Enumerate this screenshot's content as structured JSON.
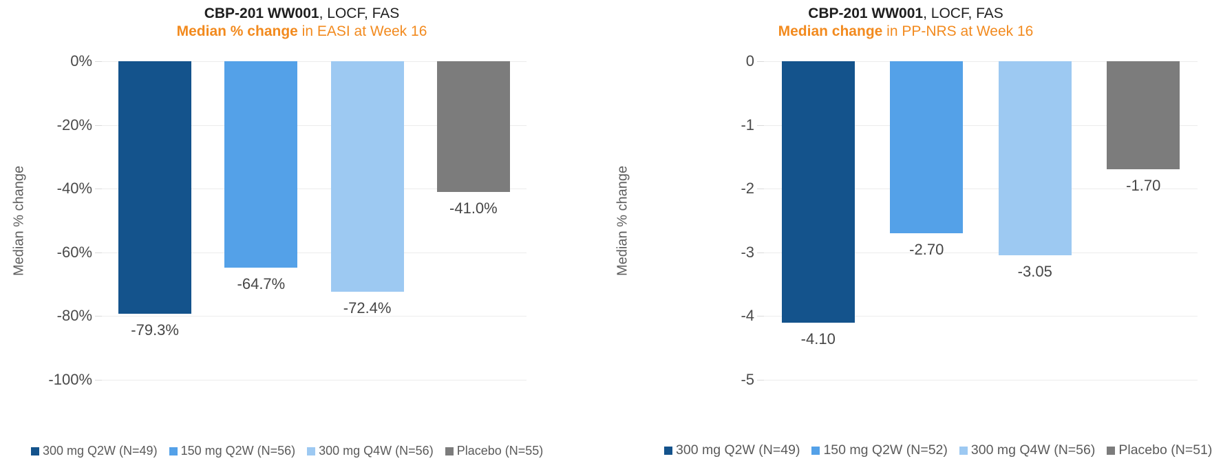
{
  "panels": [
    {
      "title_bold": "CBP-201 WW001",
      "title_rest": ", LOCF, FAS",
      "subtitle_bold": "Median % change",
      "subtitle_rest": " in EASI at Week 16",
      "y_axis_title": "Median % change"
    },
    {
      "title_bold": "CBP-201 WW001",
      "title_rest": ", LOCF, FAS",
      "subtitle_bold": "Median change",
      "subtitle_rest": " in PP-NRS at Week 16",
      "y_axis_title": "Median % change"
    }
  ],
  "colors": {
    "accent_orange": "#F28A1E",
    "title_text": "#1E1E1E",
    "axis_text": "#4A4A4A",
    "legend_text": "#5A5A5A",
    "gridline": "#ECECEC",
    "series_dark_blue": "#14538C",
    "series_mid_blue": "#54A1E8",
    "series_light_blue": "#9DC9F2",
    "series_gray": "#7C7C7C"
  },
  "chart_data": [
    {
      "type": "bar",
      "title": "CBP-201 WW001, LOCF, FAS",
      "subtitle": "Median % change in EASI at Week 16",
      "ylabel": "Median % change",
      "ylim": [
        -100,
        0
      ],
      "ytick_labels": [
        "0%",
        "-20%",
        "-40%",
        "-60%",
        "-80%",
        "-100%"
      ],
      "categories": [
        "300 mg Q2W (N=49)",
        "150 mg Q2W (N=56)",
        "300 mg Q4W (N=56)",
        "Placebo (N=55)"
      ],
      "values": [
        -79.3,
        -64.7,
        -72.4,
        -41.0
      ],
      "bar_labels": [
        "-79.3%",
        "-64.7%",
        "-72.4%",
        "-41.0%"
      ],
      "bar_colors": [
        "#14538C",
        "#54A1E8",
        "#9DC9F2",
        "#7C7C7C"
      ],
      "grid": true,
      "legend_position": "bottom"
    },
    {
      "type": "bar",
      "title": "CBP-201 WW001, LOCF, FAS",
      "subtitle": "Median change in PP-NRS at Week 16",
      "ylabel": "Median % change",
      "ylim": [
        -5,
        0
      ],
      "ytick_labels": [
        "0",
        "-1",
        "-2",
        "-3",
        "-4",
        "-5"
      ],
      "categories": [
        "300 mg Q2W (N=49)",
        "150 mg Q2W (N=52)",
        "300 mg Q4W (N=56)",
        "Placebo (N=51)"
      ],
      "values": [
        -4.1,
        -2.7,
        -3.05,
        -1.7
      ],
      "bar_labels": [
        "-4.10",
        "-2.70",
        "-3.05",
        "-1.70"
      ],
      "bar_colors": [
        "#14538C",
        "#54A1E8",
        "#9DC9F2",
        "#7C7C7C"
      ],
      "grid": true,
      "legend_position": "bottom"
    }
  ]
}
